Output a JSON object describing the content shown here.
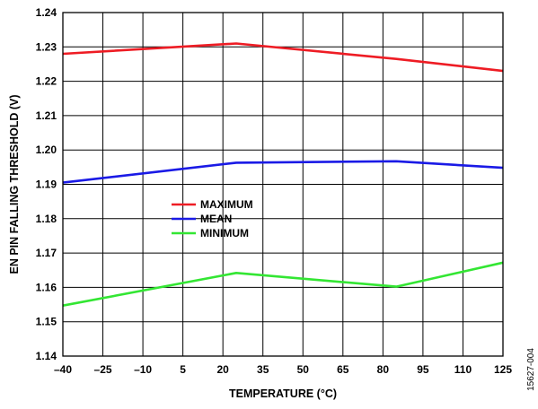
{
  "chart_data": {
    "type": "line",
    "xlabel": "TEMPERATURE (°C)",
    "ylabel": "EN PIN FALLING THRESHOLD (V)",
    "xlim": [
      -40,
      125
    ],
    "ylim": [
      1.14,
      1.24
    ],
    "x_ticks": [
      "–40",
      "–25",
      "–10",
      "5",
      "20",
      "35",
      "50",
      "65",
      "80",
      "95",
      "110",
      "125"
    ],
    "y_ticks": [
      "1.14",
      "1.15",
      "1.16",
      "1.17",
      "1.18",
      "1.19",
      "1.20",
      "1.21",
      "1.22",
      "1.23",
      "1.24"
    ],
    "x_tick_values": [
      -40,
      -25,
      -10,
      5,
      20,
      35,
      50,
      65,
      80,
      95,
      110,
      125
    ],
    "y_tick_values": [
      1.14,
      1.15,
      1.16,
      1.17,
      1.18,
      1.19,
      1.2,
      1.21,
      1.22,
      1.23,
      1.24
    ],
    "grid": true,
    "legend_position": "center-left",
    "series": [
      {
        "name": "MAXIMUM",
        "color": "#ee1c24",
        "x": [
          -40,
          25,
          85,
          125
        ],
        "y": [
          1.228,
          1.231,
          1.2265,
          1.223
        ]
      },
      {
        "name": "MEAN",
        "color": "#1a1ae6",
        "x": [
          -40,
          25,
          85,
          125
        ],
        "y": [
          1.1905,
          1.1963,
          1.1967,
          1.1948
        ]
      },
      {
        "name": "MINIMUM",
        "color": "#33e633",
        "x": [
          -40,
          25,
          85,
          125
        ],
        "y": [
          1.1547,
          1.1642,
          1.1602,
          1.1672
        ]
      }
    ],
    "figure_id": "15627-004"
  }
}
